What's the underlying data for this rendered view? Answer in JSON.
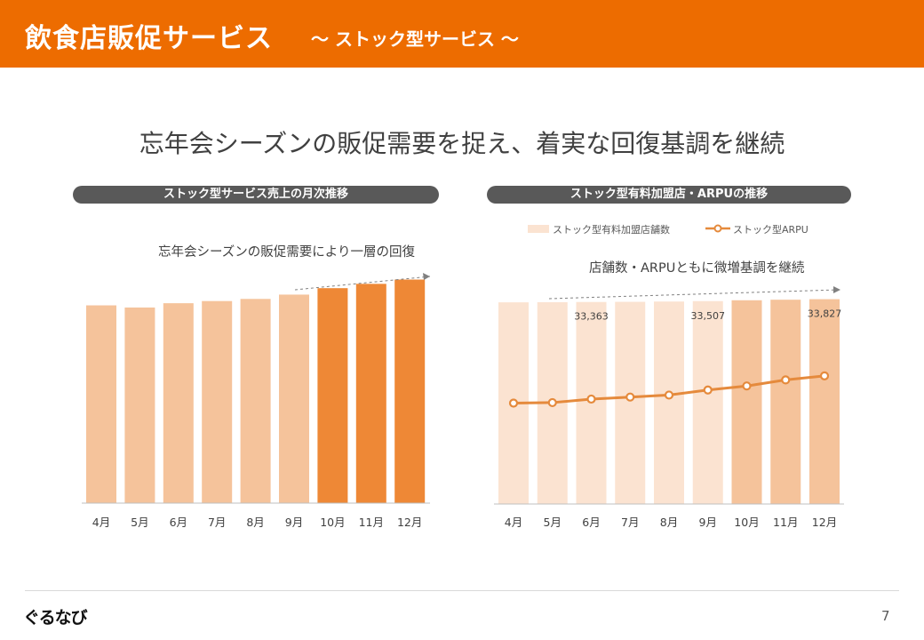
{
  "header": {
    "title": "飲食店販促サービス",
    "subtitle": "～ ストック型サービス ～"
  },
  "headline": "忘年会シーズンの販促需要を捉え、着実な回復基調を継続",
  "colors": {
    "brand": "#ED6C00",
    "bar_light": "#F5C39B",
    "bar_dark": "#EE8836",
    "bar_pale": "#FBE3D1",
    "bar_medium": "#F5C39B",
    "line": "#E58A3C",
    "pill": "#595959"
  },
  "left_panel": {
    "title": "ストック型サービス売上の月次推移",
    "annotation": "忘年会シーズンの販促需要により一層の回復"
  },
  "right_panel": {
    "title": "ストック型有料加盟店・ARPUの推移",
    "legend_bar": "ストック型有料加盟店舗数",
    "legend_line": "ストック型ARPU",
    "annotation": "店舗数・ARPUともに微増基調を継続"
  },
  "chart_data": [
    {
      "type": "bar",
      "title": "ストック型サービス売上の月次推移",
      "categories": [
        "4月",
        "5月",
        "6月",
        "7月",
        "8月",
        "9月",
        "10月",
        "11月",
        "12月"
      ],
      "values": [
        92,
        91,
        93,
        94,
        95,
        97,
        100,
        102,
        104
      ],
      "highlight_from_index": 6,
      "ylim": [
        0,
        110
      ],
      "unit": "index (axis not labeled)"
    },
    {
      "type": "bar+line",
      "title": "ストック型有料加盟店・ARPUの推移",
      "categories": [
        "4月",
        "5月",
        "6月",
        "7月",
        "8月",
        "9月",
        "10月",
        "11月",
        "12月"
      ],
      "series": [
        {
          "name": "ストック型有料加盟店舗数",
          "type": "bar",
          "values": [
            33310,
            33330,
            33363,
            33390,
            33440,
            33507,
            33650,
            33740,
            33827
          ],
          "labels": {
            "2": "33,363",
            "5": "33,507",
            "8": "33,827"
          },
          "highlight_from_index": 6
        },
        {
          "name": "ストック型ARPU",
          "type": "line",
          "values": [
            100.0,
            100.1,
            100.8,
            101.2,
            101.6,
            102.6,
            103.4,
            104.6,
            105.4
          ]
        }
      ],
      "ylim": [
        0,
        34500
      ]
    }
  ],
  "page_number": "7",
  "logo": "ぐるなび"
}
